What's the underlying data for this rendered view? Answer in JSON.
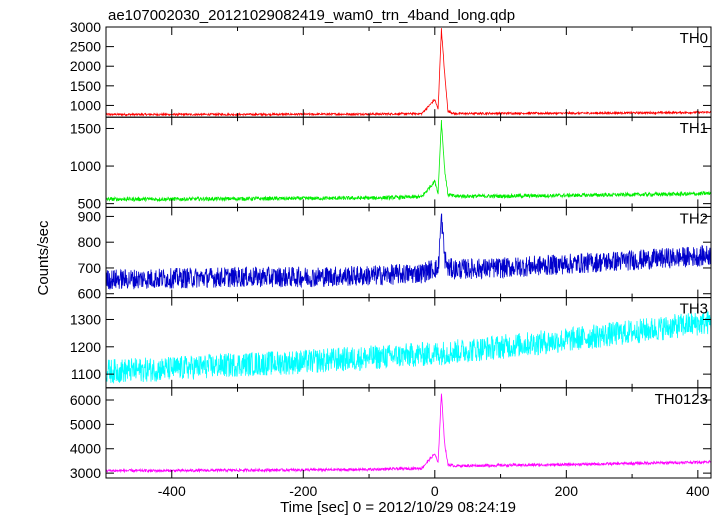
{
  "chart_data": {
    "type": "line",
    "title": "ae107002030_20121029082419_wam0_trn_4band_long.qdp",
    "xlabel": "Time [sec] 0 = 2012/10/29 08:24:19",
    "ylabel": "Counts/sec",
    "xlim": [
      -500,
      420
    ],
    "x_ticks": [
      -400,
      -200,
      0,
      200,
      400
    ],
    "grid": false,
    "panels": [
      {
        "name": "TH0",
        "color": "#ff0000",
        "ylim": [
          700,
          3000
        ],
        "yticks": [
          1000,
          1500,
          2000,
          2500,
          3000
        ],
        "x": [
          -500,
          -400,
          -300,
          -200,
          -100,
          -20,
          0,
          5,
          10,
          15,
          20,
          30,
          100,
          200,
          300,
          400,
          420
        ],
        "y": [
          770,
          770,
          770,
          775,
          780,
          790,
          1150,
          900,
          2950,
          1800,
          850,
          790,
          800,
          800,
          810,
          820,
          830
        ],
        "noise": 25
      },
      {
        "name": "TH1",
        "color": "#00ee00",
        "ylim": [
          450,
          1650
        ],
        "yticks": [
          500,
          1000,
          1500
        ],
        "x": [
          -500,
          -400,
          -300,
          -200,
          -100,
          -20,
          0,
          5,
          10,
          15,
          20,
          30,
          100,
          200,
          300,
          400,
          420
        ],
        "y": [
          560,
          560,
          565,
          570,
          575,
          590,
          800,
          650,
          1600,
          950,
          620,
          600,
          600,
          610,
          620,
          630,
          640
        ],
        "noise": 25
      },
      {
        "name": "TH2",
        "color": "#0000cc",
        "ylim": [
          585,
          935
        ],
        "yticks": [
          600,
          700,
          800,
          900
        ],
        "x": [
          -500,
          -400,
          -300,
          -200,
          -100,
          -20,
          0,
          5,
          10,
          15,
          20,
          30,
          100,
          200,
          300,
          400,
          420
        ],
        "y": [
          655,
          660,
          665,
          665,
          670,
          680,
          700,
          690,
          900,
          740,
          700,
          695,
          700,
          715,
          730,
          745,
          750
        ],
        "noise": 40
      },
      {
        "name": "TH3",
        "color": "#00ffff",
        "ylim": [
          1050,
          1380
        ],
        "yticks": [
          1100,
          1200,
          1300
        ],
        "x": [
          -500,
          -400,
          -300,
          -200,
          -100,
          0,
          100,
          200,
          300,
          400,
          420
        ],
        "y": [
          1110,
          1120,
          1135,
          1145,
          1160,
          1175,
          1200,
          1225,
          1255,
          1285,
          1290
        ],
        "noise": 45
      },
      {
        "name": "TH0123",
        "color": "#ff00ff",
        "ylim": [
          2800,
          6500
        ],
        "yticks": [
          3000,
          4000,
          5000,
          6000
        ],
        "x": [
          -500,
          -400,
          -300,
          -200,
          -100,
          -20,
          0,
          5,
          10,
          15,
          20,
          30,
          100,
          200,
          300,
          400,
          420
        ],
        "y": [
          3100,
          3100,
          3120,
          3130,
          3150,
          3200,
          3800,
          3400,
          6300,
          4200,
          3350,
          3300,
          3320,
          3350,
          3400,
          3450,
          3470
        ],
        "noise": 55
      }
    ]
  }
}
